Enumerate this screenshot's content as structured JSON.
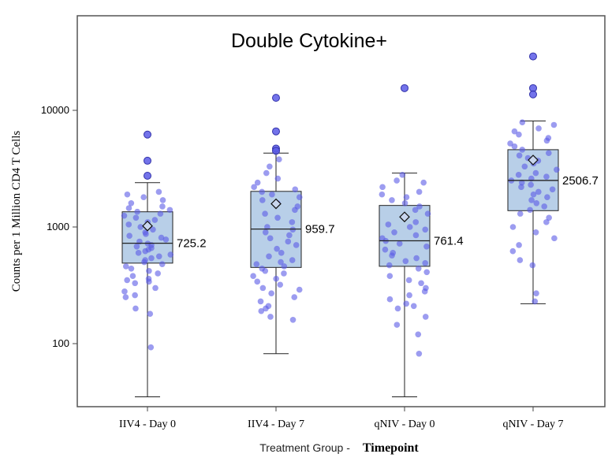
{
  "chart_data": {
    "type": "boxplot",
    "title": "Double Cytokine+",
    "ylabel": "Counts per 1 Million CD4 T Cells",
    "xlabel_part1": "Treatment Group -",
    "xlabel_part2": "Timepoint",
    "yscale": "log",
    "ylim": [
      33,
      45000
    ],
    "yticks": [
      100,
      1000,
      10000
    ],
    "ytick_labels": [
      "100",
      "1000",
      "10000"
    ],
    "grid": false,
    "legend": "none",
    "colors": {
      "box_fill": "#b8cfe8",
      "box_stroke": "#222222",
      "point": "#5a5ae6",
      "mean_marker_fill": "#c9d6ee"
    },
    "categories": [
      "IIV4 - Day 0",
      "IIV4 - Day 7",
      "qNIV - Day 0",
      "qNIV - Day 7"
    ],
    "boxes": [
      {
        "category": "IIV4 - Day 0",
        "median": 725.2,
        "median_label": "725.2",
        "q1": 490,
        "q3": 1350,
        "whisker_low": 35,
        "whisker_high": 2400,
        "mean": 1020,
        "outliers": [
          6200,
          3700,
          2750
        ],
        "points": [
          2000,
          1900,
          1800,
          1700,
          1600,
          1500,
          1450,
          1400,
          1350,
          1300,
          1250,
          1200,
          1150,
          1100,
          1050,
          1000,
          950,
          900,
          870,
          840,
          810,
          780,
          750,
          720,
          700,
          680,
          660,
          640,
          620,
          600,
          580,
          560,
          540,
          520,
          500,
          480,
          460,
          440,
          420,
          400,
          380,
          360,
          350,
          340,
          330,
          300,
          280,
          260,
          250,
          200,
          180,
          93
        ]
      },
      {
        "category": "IIV4 - Day 7",
        "median": 959.7,
        "median_label": "959.7",
        "q1": 450,
        "q3": 2020,
        "whisker_low": 82,
        "whisker_high": 4300,
        "mean": 1580,
        "outliers": [
          12800,
          6600,
          4700,
          4500
        ],
        "points": [
          3800,
          3300,
          2900,
          2600,
          2400,
          2200,
          2100,
          2000,
          1900,
          1800,
          1700,
          1600,
          1500,
          1400,
          1300,
          1200,
          1100,
          1000,
          950,
          900,
          850,
          800,
          750,
          700,
          650,
          600,
          560,
          520,
          500,
          480,
          460,
          440,
          420,
          400,
          380,
          360,
          340,
          320,
          300,
          290,
          270,
          250,
          230,
          210,
          200,
          190,
          170,
          160
        ]
      },
      {
        "category": "qNIV - Day 0",
        "median": 761.4,
        "median_label": "761.4",
        "q1": 460,
        "q3": 1530,
        "whisker_low": 35,
        "whisker_high": 2900,
        "mean": 1220,
        "outliers": [
          15500
        ],
        "points": [
          2800,
          2500,
          2400,
          2200,
          2000,
          1900,
          1800,
          1700,
          1600,
          1500,
          1400,
          1300,
          1200,
          1100,
          1050,
          1000,
          950,
          900,
          850,
          800,
          760,
          720,
          680,
          640,
          600,
          570,
          540,
          510,
          490,
          470,
          440,
          410,
          380,
          350,
          330,
          300,
          280,
          260,
          240,
          220,
          210,
          200,
          170,
          145,
          120,
          82
        ]
      },
      {
        "category": "qNIV - Day 7",
        "median": 2506.7,
        "median_label": "2506.7",
        "q1": 1380,
        "q3": 4600,
        "whisker_low": 220,
        "whisker_high": 8100,
        "mean": 3750,
        "outliers": [
          29000,
          15500,
          13700
        ],
        "points": [
          7900,
          7500,
          7000,
          6600,
          6200,
          5800,
          5500,
          5200,
          4900,
          4600,
          4300,
          4100,
          3900,
          3700,
          3500,
          3300,
          3100,
          2900,
          2800,
          2700,
          2600,
          2500,
          2400,
          2300,
          2200,
          2100,
          2000,
          1900,
          1800,
          1700,
          1600,
          1500,
          1400,
          1300,
          1200,
          1100,
          1000,
          900,
          800,
          700,
          620,
          520,
          470,
          270,
          230
        ]
      }
    ]
  }
}
